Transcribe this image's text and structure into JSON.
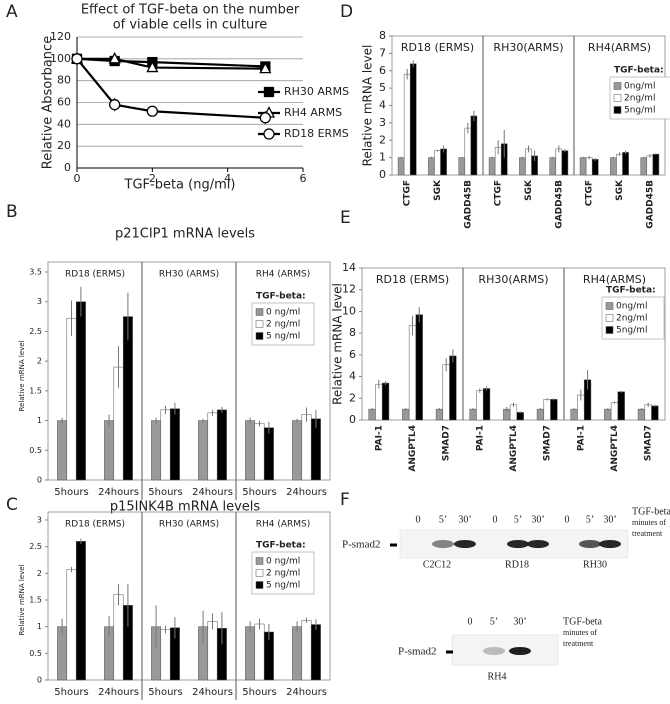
{
  "panel_labels": [
    "A",
    "B",
    "C",
    "D",
    "E",
    "F"
  ],
  "chart_data": [
    {
      "type": "line",
      "title": [
        "Effect of TGF-beta on the number",
        "of viable cells in culture"
      ],
      "x_label": "TGF-beta (ng/ml)",
      "y_label": "Relative Absorbance",
      "x": [
        0,
        1,
        2,
        5
      ],
      "xlim": [
        0,
        6
      ],
      "xticks": [
        0,
        2,
        4,
        6
      ],
      "ylim": [
        0,
        120
      ],
      "yticks": [
        0,
        20,
        40,
        60,
        80,
        100,
        120
      ],
      "grid": true,
      "series": [
        {
          "name": "RH30 ARMS",
          "marker": "square",
          "color": "#000000",
          "values": [
            100,
            98,
            97,
            93
          ],
          "errors": [
            1,
            2,
            2,
            2
          ]
        },
        {
          "name": "RH4 ARMS",
          "marker": "triangle",
          "color": "#000000",
          "values": [
            100,
            100,
            92,
            91
          ],
          "errors": [
            2,
            2,
            4,
            3
          ]
        },
        {
          "name": "RD18 ERMS",
          "marker": "circle",
          "color": "#000000",
          "values": [
            100,
            58,
            52,
            46
          ],
          "errors": [
            3,
            6,
            4,
            6
          ]
        }
      ]
    },
    {
      "type": "bar",
      "title": "p21CIP1 mRNA levels",
      "y_label": "Relative mRNA level",
      "groups": [
        "RD18 (ERMS)",
        "RH30 (ARMS)",
        "RH4 (ARMS)"
      ],
      "categories": [
        "5hours",
        "24hours",
        "5hours",
        "24hours",
        "5hours",
        "24hours"
      ],
      "ylim": [
        0,
        3.5
      ],
      "yticks": [
        0,
        0.5,
        1,
        1.5,
        2,
        2.5,
        3,
        3.5
      ],
      "legend_title": "TGF-beta:",
      "series": [
        {
          "name": "0 ng/ml",
          "color": "#999999",
          "values": [
            1,
            1,
            1,
            1,
            1,
            1
          ],
          "errors": [
            0.05,
            0.1,
            0.05,
            0.03,
            0.05,
            0.03
          ]
        },
        {
          "name": "2 ng/ml",
          "color": "#ffffff",
          "values": [
            2.72,
            1.9,
            1.18,
            1.13,
            0.95,
            1.1
          ],
          "errors": [
            0.3,
            0.35,
            0.07,
            0.05,
            0.05,
            0.12
          ]
        },
        {
          "name": "5 ng/ml",
          "color": "#000000",
          "values": [
            3.0,
            2.75,
            1.2,
            1.18,
            0.88,
            1.03
          ],
          "errors": [
            0.25,
            0.4,
            0.1,
            0.05,
            0.1,
            0.15
          ]
        }
      ]
    },
    {
      "type": "bar",
      "title": "p15INK4B mRNA levels",
      "y_label": "Relative mRNA level",
      "groups": [
        "RD18 (ERMS)",
        "RH30 (ARMS)",
        "RH4 (ARMS)"
      ],
      "categories": [
        "5hours",
        "24hours",
        "5hours",
        "24hours",
        "5hours",
        "24hours"
      ],
      "ylim": [
        0,
        3
      ],
      "yticks": [
        0,
        0.5,
        1,
        1.5,
        2,
        2.5,
        3
      ],
      "legend_title": "TGF-beta:",
      "series": [
        {
          "name": "0 ng/ml",
          "color": "#999999",
          "values": [
            1,
            1,
            1,
            1,
            1,
            1
          ],
          "errors": [
            0.15,
            0.2,
            0.4,
            0.3,
            0.1,
            0.1
          ]
        },
        {
          "name": "2 ng/ml",
          "color": "#ffffff",
          "values": [
            2.07,
            1.6,
            0.95,
            1.1,
            1.05,
            1.12
          ],
          "errors": [
            0.05,
            0.2,
            0.07,
            0.15,
            0.1,
            0.05
          ]
        },
        {
          "name": "5 ng/ml",
          "color": "#000000",
          "values": [
            2.6,
            1.4,
            0.98,
            0.97,
            0.9,
            1.04
          ],
          "errors": [
            0.05,
            0.4,
            0.2,
            0.3,
            0.15,
            0.1
          ]
        }
      ]
    },
    {
      "type": "bar",
      "y_label": "Relative mRNA level",
      "groups": [
        "RD18 (ERMS)",
        "RH30(ARMS)",
        "RH4(ARMS)"
      ],
      "categories": [
        "CTGF",
        "SGK",
        "GADD45B",
        "CTGF",
        "SGK",
        "GADD45B",
        "CTGF",
        "SGK",
        "GADD45B"
      ],
      "ylim": [
        0,
        8
      ],
      "yticks": [
        0,
        1,
        2,
        3,
        4,
        5,
        6,
        7,
        8
      ],
      "legend_title": "TGF-beta:",
      "rotate_labels": true,
      "series": [
        {
          "name": "0ng/ml",
          "color": "#999999",
          "values": [
            1,
            1,
            1,
            1,
            1,
            1,
            1,
            1,
            1
          ],
          "errors": [
            0.05,
            0.05,
            0.05,
            0.05,
            0.05,
            0.05,
            0.05,
            0.05,
            0.05
          ]
        },
        {
          "name": "2ng/ml",
          "color": "#ffffff",
          "values": [
            5.8,
            1.4,
            2.7,
            1.6,
            1.5,
            1.5,
            1.0,
            1.2,
            1.1
          ],
          "errors": [
            0.3,
            0.05,
            0.3,
            0.4,
            0.2,
            0.2,
            0.1,
            0.1,
            0.1
          ]
        },
        {
          "name": "5ng/ml",
          "color": "#000000",
          "values": [
            6.4,
            1.5,
            3.4,
            1.8,
            1.1,
            1.4,
            0.9,
            1.3,
            1.2
          ],
          "errors": [
            0.2,
            0.2,
            0.3,
            0.8,
            0.3,
            0.1,
            0.1,
            0.1,
            0.05
          ]
        }
      ]
    },
    {
      "type": "bar",
      "y_label": "Relative mRNA level",
      "groups": [
        "RD18 (ERMS)",
        "RH30(ARMS)",
        "RH4(ARMS)"
      ],
      "categories": [
        "PAI-1",
        "ANGPTL4",
        "SMAD7",
        "PAI-1",
        "ANGPTL4",
        "SMAD7",
        "PAI-1",
        "ANGPTL4",
        "SMAD7"
      ],
      "ylim": [
        0,
        14
      ],
      "yticks": [
        0,
        2,
        4,
        6,
        8,
        10,
        12,
        14
      ],
      "legend_title": "TGF-beta:",
      "rotate_labels": true,
      "series": [
        {
          "name": "0ng/ml",
          "color": "#999999",
          "values": [
            1,
            1,
            1,
            1,
            1,
            1,
            1,
            1,
            1
          ],
          "errors": [
            0.1,
            0.1,
            0.1,
            0.1,
            0.2,
            0.1,
            0.1,
            0.1,
            0.1
          ]
        },
        {
          "name": "2ng/ml",
          "color": "#ffffff",
          "values": [
            3.3,
            8.7,
            5.1,
            2.7,
            1.4,
            1.9,
            2.3,
            1.6,
            1.4
          ],
          "errors": [
            0.4,
            0.9,
            0.6,
            0.2,
            0.2,
            0.1,
            0.5,
            0.1,
            0.2
          ]
        },
        {
          "name": "5ng/ml",
          "color": "#000000",
          "values": [
            3.4,
            9.7,
            5.9,
            2.9,
            0.7,
            1.9,
            3.7,
            2.6,
            1.3
          ],
          "errors": [
            0.2,
            0.7,
            0.6,
            0.2,
            0.1,
            0.1,
            0.9,
            0.1,
            0.1
          ]
        }
      ]
    }
  ],
  "blots": [
    {
      "label": "P-smad2",
      "lanes": [
        "0",
        "5’",
        "30’",
        "0",
        "5’",
        "30’",
        "0",
        "5’",
        "30’"
      ],
      "cell_lines": [
        "C2C12",
        "RD18",
        "RH30"
      ],
      "treatment": [
        "TGF-beta",
        "minutes of",
        "treatment"
      ]
    },
    {
      "label": "P-smad2",
      "lanes": [
        "0",
        "5’",
        "30’"
      ],
      "cell_lines": [
        "RH4"
      ],
      "treatment": [
        "TGF-beta",
        "minutes of",
        "treatment"
      ]
    }
  ]
}
